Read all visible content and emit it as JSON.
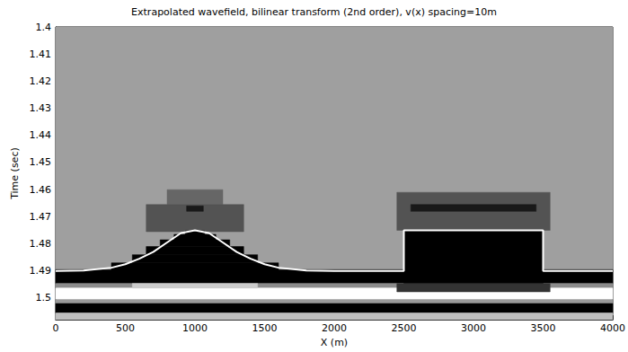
{
  "chart_data": {
    "type": "heatmap",
    "title": "Extrapolated wavefield, bilinear transform (2nd order), v(x) spacing=10m",
    "xlabel": "X (m)",
    "ylabel": "Time (sec)",
    "xlim": [
      0,
      4000
    ],
    "ylim": [
      1.4,
      1.508
    ],
    "xticks": [
      0,
      500,
      1000,
      1500,
      2000,
      2500,
      3000,
      3500,
      4000
    ],
    "yticks": [
      1.4,
      1.41,
      1.42,
      1.43,
      1.44,
      1.45,
      1.46,
      1.47,
      1.48,
      1.49,
      1.5
    ],
    "grid": false,
    "clim": [
      -1,
      1
    ],
    "cells": [
      [
        0,
        4000,
        1.4,
        1.4895,
        0.25
      ],
      [
        0,
        4000,
        1.4895,
        1.4946,
        -1
      ],
      [
        0,
        4000,
        1.4946,
        1.4963,
        0.1
      ],
      [
        0,
        4000,
        1.4963,
        1.5005,
        1
      ],
      [
        0,
        4000,
        1.5005,
        1.502,
        0.2
      ],
      [
        0,
        4000,
        1.502,
        1.5055,
        -1
      ],
      [
        0,
        4000,
        1.5055,
        1.508,
        0.5
      ],
      [
        550,
        1450,
        1.4946,
        1.4963,
        0.6
      ],
      [
        800,
        1200,
        1.46,
        1.4655,
        -0.2
      ],
      [
        650,
        1350,
        1.4655,
        1.4755,
        -0.35
      ],
      [
        940,
        1060,
        1.466,
        1.468,
        -0.8
      ],
      [
        400,
        1600,
        1.487,
        1.4903,
        -1
      ],
      [
        550,
        1450,
        1.484,
        1.487,
        -1
      ],
      [
        650,
        1350,
        1.481,
        1.484,
        -1
      ],
      [
        750,
        1250,
        1.4785,
        1.481,
        -1
      ],
      [
        850,
        1150,
        1.4765,
        1.4785,
        -1
      ],
      [
        930,
        1070,
        1.4752,
        1.4765,
        -1
      ],
      [
        2450,
        3550,
        1.461,
        1.475,
        -0.35
      ],
      [
        2550,
        3450,
        1.4655,
        1.468,
        -0.8
      ],
      [
        2500,
        3500,
        1.475,
        1.4946,
        -1
      ],
      [
        2450,
        3550,
        1.4946,
        1.4977,
        -0.6
      ]
    ],
    "series": [
      {
        "type": "line",
        "color": "#ffffff",
        "x": [
          0,
          200,
          400,
          500,
          600,
          700,
          800,
          900,
          1000,
          1100,
          1200,
          1300,
          1400,
          1500,
          1600,
          1800,
          2000,
          2500,
          2500,
          3500,
          3500,
          4000
        ],
        "values": [
          1.49,
          1.4898,
          1.4888,
          1.4875,
          1.4855,
          1.483,
          1.4795,
          1.476,
          1.475,
          1.476,
          1.4795,
          1.483,
          1.4855,
          1.4875,
          1.4888,
          1.4898,
          1.49,
          1.49,
          1.475,
          1.475,
          1.49,
          1.49
        ]
      }
    ]
  }
}
